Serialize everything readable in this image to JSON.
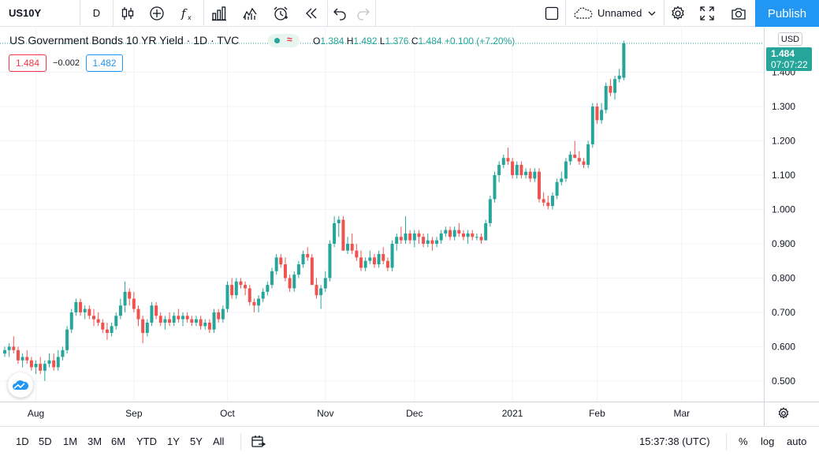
{
  "toolbar": {
    "symbol": "US10Y",
    "interval": "D",
    "layout_name": "Unnamed",
    "publish_label": "Publish"
  },
  "legend": {
    "title": "US Government Bonds 10 YR Yield · 1D · TVC",
    "status_icon": "≈",
    "open_label": "O",
    "open": "1.384",
    "high_label": "H",
    "high": "1.492",
    "low_label": "L",
    "low": "1.376",
    "close_label": "C",
    "close": "1.484",
    "change": "+0.100 (+7.20%)"
  },
  "quote": {
    "bid": "1.484",
    "spread": "−0.002",
    "ask": "1.482"
  },
  "price_scale": {
    "currency": "USD",
    "last_price": "1.484",
    "countdown": "07:07:22"
  },
  "colors": {
    "up": "#26a69a",
    "down": "#ef5350",
    "accent": "#2196f3",
    "grid": "#f0f3fa"
  },
  "bottom_bar": {
    "ranges": [
      "1D",
      "5D",
      "1M",
      "3M",
      "6M",
      "YTD",
      "1Y",
      "5Y",
      "All"
    ],
    "clock": "15:37:38 (UTC)",
    "percent_label": "%",
    "log_label": "log",
    "auto_label": "auto"
  },
  "chart_data": {
    "type": "candlestick",
    "title": "US Government Bonds 10 YR Yield · 1D · TVC",
    "y_ticks": [
      0.5,
      0.6,
      0.7,
      0.8,
      0.9,
      1.0,
      1.1,
      1.2,
      1.3,
      1.4
    ],
    "y_tick_labels": [
      "0.500",
      "0.600",
      "0.700",
      "0.800",
      "0.900",
      "1.000",
      "1.100",
      "1.200",
      "1.300",
      "1.400"
    ],
    "ylim": [
      0.44,
      1.53
    ],
    "x_ticks": [
      {
        "label": "Aug",
        "index": 7
      },
      {
        "label": "Sep",
        "index": 29
      },
      {
        "label": "Oct",
        "index": 50
      },
      {
        "label": "Nov",
        "index": 72
      },
      {
        "label": "Dec",
        "index": 92
      },
      {
        "label": "2021",
        "index": 114
      },
      {
        "label": "Feb",
        "index": 133
      },
      {
        "label": "Mar",
        "index": 152
      }
    ],
    "last_price": 1.484,
    "grid": true,
    "candles": [
      [
        0.58,
        0.6,
        0.57,
        0.59
      ],
      [
        0.59,
        0.61,
        0.57,
        0.6
      ],
      [
        0.6,
        0.63,
        0.58,
        0.59
      ],
      [
        0.59,
        0.6,
        0.55,
        0.56
      ],
      [
        0.56,
        0.58,
        0.54,
        0.57
      ],
      [
        0.57,
        0.59,
        0.55,
        0.56
      ],
      [
        0.56,
        0.57,
        0.53,
        0.54
      ],
      [
        0.54,
        0.56,
        0.52,
        0.55
      ],
      [
        0.55,
        0.57,
        0.52,
        0.53
      ],
      [
        0.53,
        0.56,
        0.5,
        0.55
      ],
      [
        0.55,
        0.58,
        0.54,
        0.56
      ],
      [
        0.56,
        0.58,
        0.53,
        0.54
      ],
      [
        0.54,
        0.59,
        0.53,
        0.57
      ],
      [
        0.57,
        0.6,
        0.56,
        0.59
      ],
      [
        0.59,
        0.66,
        0.58,
        0.65
      ],
      [
        0.65,
        0.71,
        0.64,
        0.7
      ],
      [
        0.7,
        0.74,
        0.69,
        0.73
      ],
      [
        0.73,
        0.74,
        0.69,
        0.7
      ],
      [
        0.7,
        0.72,
        0.68,
        0.71
      ],
      [
        0.71,
        0.72,
        0.68,
        0.69
      ],
      [
        0.69,
        0.71,
        0.66,
        0.68
      ],
      [
        0.68,
        0.7,
        0.66,
        0.67
      ],
      [
        0.67,
        0.68,
        0.64,
        0.65
      ],
      [
        0.65,
        0.67,
        0.62,
        0.64
      ],
      [
        0.64,
        0.67,
        0.63,
        0.66
      ],
      [
        0.66,
        0.7,
        0.65,
        0.69
      ],
      [
        0.69,
        0.74,
        0.68,
        0.72
      ],
      [
        0.72,
        0.79,
        0.7,
        0.76
      ],
      [
        0.76,
        0.77,
        0.72,
        0.74
      ],
      [
        0.74,
        0.76,
        0.7,
        0.71
      ],
      [
        0.71,
        0.72,
        0.66,
        0.68
      ],
      [
        0.68,
        0.69,
        0.61,
        0.64
      ],
      [
        0.64,
        0.68,
        0.63,
        0.67
      ],
      [
        0.67,
        0.73,
        0.66,
        0.72
      ],
      [
        0.72,
        0.73,
        0.68,
        0.69
      ],
      [
        0.69,
        0.7,
        0.66,
        0.67
      ],
      [
        0.67,
        0.69,
        0.65,
        0.68
      ],
      [
        0.68,
        0.7,
        0.66,
        0.67
      ],
      [
        0.67,
        0.7,
        0.66,
        0.69
      ],
      [
        0.69,
        0.71,
        0.67,
        0.68
      ],
      [
        0.68,
        0.7,
        0.66,
        0.69
      ],
      [
        0.69,
        0.7,
        0.67,
        0.68
      ],
      [
        0.68,
        0.69,
        0.66,
        0.67
      ],
      [
        0.67,
        0.69,
        0.66,
        0.68
      ],
      [
        0.68,
        0.69,
        0.65,
        0.66
      ],
      [
        0.66,
        0.68,
        0.65,
        0.67
      ],
      [
        0.67,
        0.68,
        0.64,
        0.65
      ],
      [
        0.65,
        0.71,
        0.64,
        0.7
      ],
      [
        0.7,
        0.71,
        0.67,
        0.68
      ],
      [
        0.68,
        0.72,
        0.67,
        0.71
      ],
      [
        0.71,
        0.79,
        0.7,
        0.78
      ],
      [
        0.78,
        0.8,
        0.74,
        0.75
      ],
      [
        0.75,
        0.8,
        0.74,
        0.79
      ],
      [
        0.79,
        0.8,
        0.77,
        0.78
      ],
      [
        0.78,
        0.79,
        0.75,
        0.77
      ],
      [
        0.77,
        0.78,
        0.72,
        0.73
      ],
      [
        0.73,
        0.74,
        0.7,
        0.72
      ],
      [
        0.72,
        0.75,
        0.7,
        0.74
      ],
      [
        0.74,
        0.77,
        0.73,
        0.76
      ],
      [
        0.76,
        0.79,
        0.75,
        0.78
      ],
      [
        0.78,
        0.83,
        0.77,
        0.82
      ],
      [
        0.82,
        0.87,
        0.81,
        0.86
      ],
      [
        0.86,
        0.87,
        0.83,
        0.84
      ],
      [
        0.84,
        0.86,
        0.79,
        0.8
      ],
      [
        0.8,
        0.81,
        0.76,
        0.77
      ],
      [
        0.77,
        0.82,
        0.76,
        0.81
      ],
      [
        0.81,
        0.85,
        0.8,
        0.84
      ],
      [
        0.84,
        0.88,
        0.83,
        0.87
      ],
      [
        0.87,
        0.89,
        0.85,
        0.86
      ],
      [
        0.86,
        0.87,
        0.78,
        0.78
      ],
      [
        0.78,
        0.8,
        0.74,
        0.75
      ],
      [
        0.75,
        0.78,
        0.71,
        0.77
      ],
      [
        0.77,
        0.82,
        0.76,
        0.8
      ],
      [
        0.8,
        0.91,
        0.79,
        0.9
      ],
      [
        0.9,
        0.98,
        0.89,
        0.96
      ],
      [
        0.96,
        0.98,
        0.92,
        0.97
      ],
      [
        0.97,
        0.98,
        0.88,
        0.88
      ],
      [
        0.88,
        0.92,
        0.87,
        0.9
      ],
      [
        0.9,
        0.93,
        0.87,
        0.88
      ],
      [
        0.88,
        0.9,
        0.85,
        0.86
      ],
      [
        0.86,
        0.88,
        0.82,
        0.83
      ],
      [
        0.83,
        0.86,
        0.82,
        0.85
      ],
      [
        0.85,
        0.88,
        0.84,
        0.86
      ],
      [
        0.86,
        0.87,
        0.83,
        0.84
      ],
      [
        0.84,
        0.88,
        0.83,
        0.87
      ],
      [
        0.87,
        0.89,
        0.84,
        0.85
      ],
      [
        0.85,
        0.86,
        0.82,
        0.83
      ],
      [
        0.83,
        0.91,
        0.82,
        0.9
      ],
      [
        0.9,
        0.93,
        0.88,
        0.92
      ],
      [
        0.92,
        0.95,
        0.9,
        0.91
      ],
      [
        0.91,
        0.98,
        0.9,
        0.93
      ],
      [
        0.93,
        0.94,
        0.9,
        0.91
      ],
      [
        0.91,
        0.94,
        0.89,
        0.93
      ],
      [
        0.93,
        0.94,
        0.9,
        0.92
      ],
      [
        0.92,
        0.93,
        0.89,
        0.9
      ],
      [
        0.9,
        0.93,
        0.89,
        0.91
      ],
      [
        0.91,
        0.92,
        0.88,
        0.9
      ],
      [
        0.9,
        0.92,
        0.89,
        0.91
      ],
      [
        0.91,
        0.94,
        0.9,
        0.93
      ],
      [
        0.93,
        0.95,
        0.92,
        0.94
      ],
      [
        0.94,
        0.95,
        0.91,
        0.92
      ],
      [
        0.92,
        0.95,
        0.91,
        0.94
      ],
      [
        0.94,
        0.96,
        0.92,
        0.93
      ],
      [
        0.93,
        0.94,
        0.91,
        0.92
      ],
      [
        0.92,
        0.94,
        0.9,
        0.93
      ],
      [
        0.93,
        0.94,
        0.91,
        0.92
      ],
      [
        0.92,
        0.93,
        0.91,
        0.92
      ],
      [
        0.92,
        0.93,
        0.9,
        0.91
      ],
      [
        0.91,
        0.97,
        0.91,
        0.96
      ],
      [
        0.96,
        1.04,
        0.95,
        1.03
      ],
      [
        1.03,
        1.11,
        1.02,
        1.1
      ],
      [
        1.1,
        1.14,
        1.08,
        1.13
      ],
      [
        1.13,
        1.16,
        1.12,
        1.15
      ],
      [
        1.15,
        1.18,
        1.13,
        1.14
      ],
      [
        1.14,
        1.15,
        1.09,
        1.1
      ],
      [
        1.1,
        1.14,
        1.09,
        1.13
      ],
      [
        1.13,
        1.14,
        1.09,
        1.1
      ],
      [
        1.1,
        1.12,
        1.09,
        1.11
      ],
      [
        1.11,
        1.12,
        1.08,
        1.09
      ],
      [
        1.09,
        1.12,
        1.08,
        1.11
      ],
      [
        1.11,
        1.12,
        1.02,
        1.03
      ],
      [
        1.03,
        1.05,
        1.01,
        1.02
      ],
      [
        1.02,
        1.04,
        1.0,
        1.01
      ],
      [
        1.01,
        1.05,
        1.0,
        1.04
      ],
      [
        1.04,
        1.09,
        1.03,
        1.08
      ],
      [
        1.08,
        1.11,
        1.07,
        1.09
      ],
      [
        1.09,
        1.15,
        1.08,
        1.14
      ],
      [
        1.14,
        1.17,
        1.13,
        1.16
      ],
      [
        1.16,
        1.2,
        1.15,
        1.15
      ],
      [
        1.15,
        1.17,
        1.13,
        1.14
      ],
      [
        1.14,
        1.15,
        1.12,
        1.13
      ],
      [
        1.13,
        1.2,
        1.12,
        1.19
      ],
      [
        1.19,
        1.31,
        1.18,
        1.3
      ],
      [
        1.3,
        1.31,
        1.25,
        1.26
      ],
      [
        1.26,
        1.31,
        1.25,
        1.29
      ],
      [
        1.29,
        1.37,
        1.28,
        1.36
      ],
      [
        1.36,
        1.38,
        1.33,
        1.34
      ],
      [
        1.34,
        1.39,
        1.32,
        1.38
      ],
      [
        1.38,
        1.41,
        1.37,
        1.39
      ],
      [
        1.384,
        1.492,
        1.376,
        1.484
      ]
    ]
  }
}
